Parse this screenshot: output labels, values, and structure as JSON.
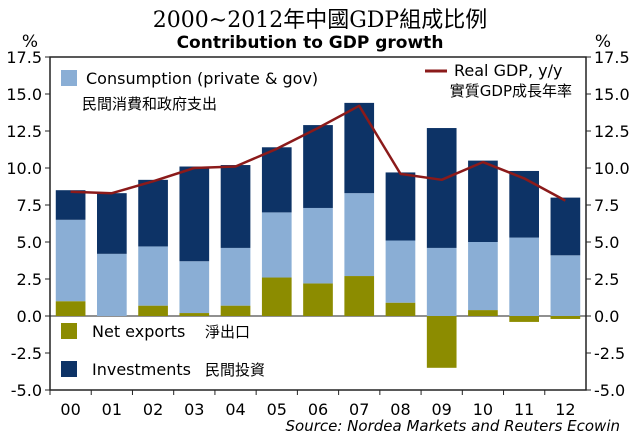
{
  "chart_data": {
    "type": "bar",
    "stacked": true,
    "title": "2000~2012年中國GDP組成比例",
    "subtitle": "Contribution to GDP growth",
    "y_unit_left": "%",
    "y_unit_right": "%",
    "ylim": [
      -5.0,
      17.5
    ],
    "yticks": [
      "17.5",
      "15.0",
      "12.5",
      "10.0",
      "7.5",
      "5.0",
      "2.5",
      "0.0",
      "-2.5",
      "-5.0"
    ],
    "categories": [
      "00",
      "01",
      "02",
      "03",
      "04",
      "05",
      "06",
      "07",
      "08",
      "09",
      "10",
      "11",
      "12"
    ],
    "series": [
      {
        "name": "Net exports",
        "name_cn": "淨出口",
        "color": "#8c8c00",
        "values": [
          1.0,
          0.0,
          0.7,
          0.2,
          0.7,
          2.6,
          2.2,
          2.7,
          0.9,
          -3.5,
          0.4,
          -0.4,
          -0.2
        ]
      },
      {
        "name": "Consumption (private & gov)",
        "name_cn": "民間消費和政府支出",
        "color": "#8aaed5",
        "values": [
          5.5,
          4.2,
          4.0,
          3.5,
          3.9,
          4.4,
          5.1,
          5.6,
          4.2,
          4.6,
          4.6,
          5.3,
          4.1
        ]
      },
      {
        "name": "Investments",
        "name_cn": "民間投資",
        "color": "#0d3366",
        "values": [
          2.0,
          4.1,
          4.5,
          6.4,
          5.6,
          4.4,
          5.6,
          6.1,
          4.6,
          8.1,
          5.5,
          4.5,
          3.9
        ]
      }
    ],
    "line": {
      "name": "Real GDP, y/y",
      "name_cn": "實質GDP成長年率",
      "color": "#8b1a1a",
      "values": [
        8.4,
        8.3,
        9.1,
        10.0,
        10.1,
        11.3,
        12.7,
        14.2,
        9.6,
        9.2,
        10.4,
        9.3,
        7.8
      ]
    },
    "grid": false,
    "source": "Source: Nordea Markets and Reuters Ecowin"
  }
}
